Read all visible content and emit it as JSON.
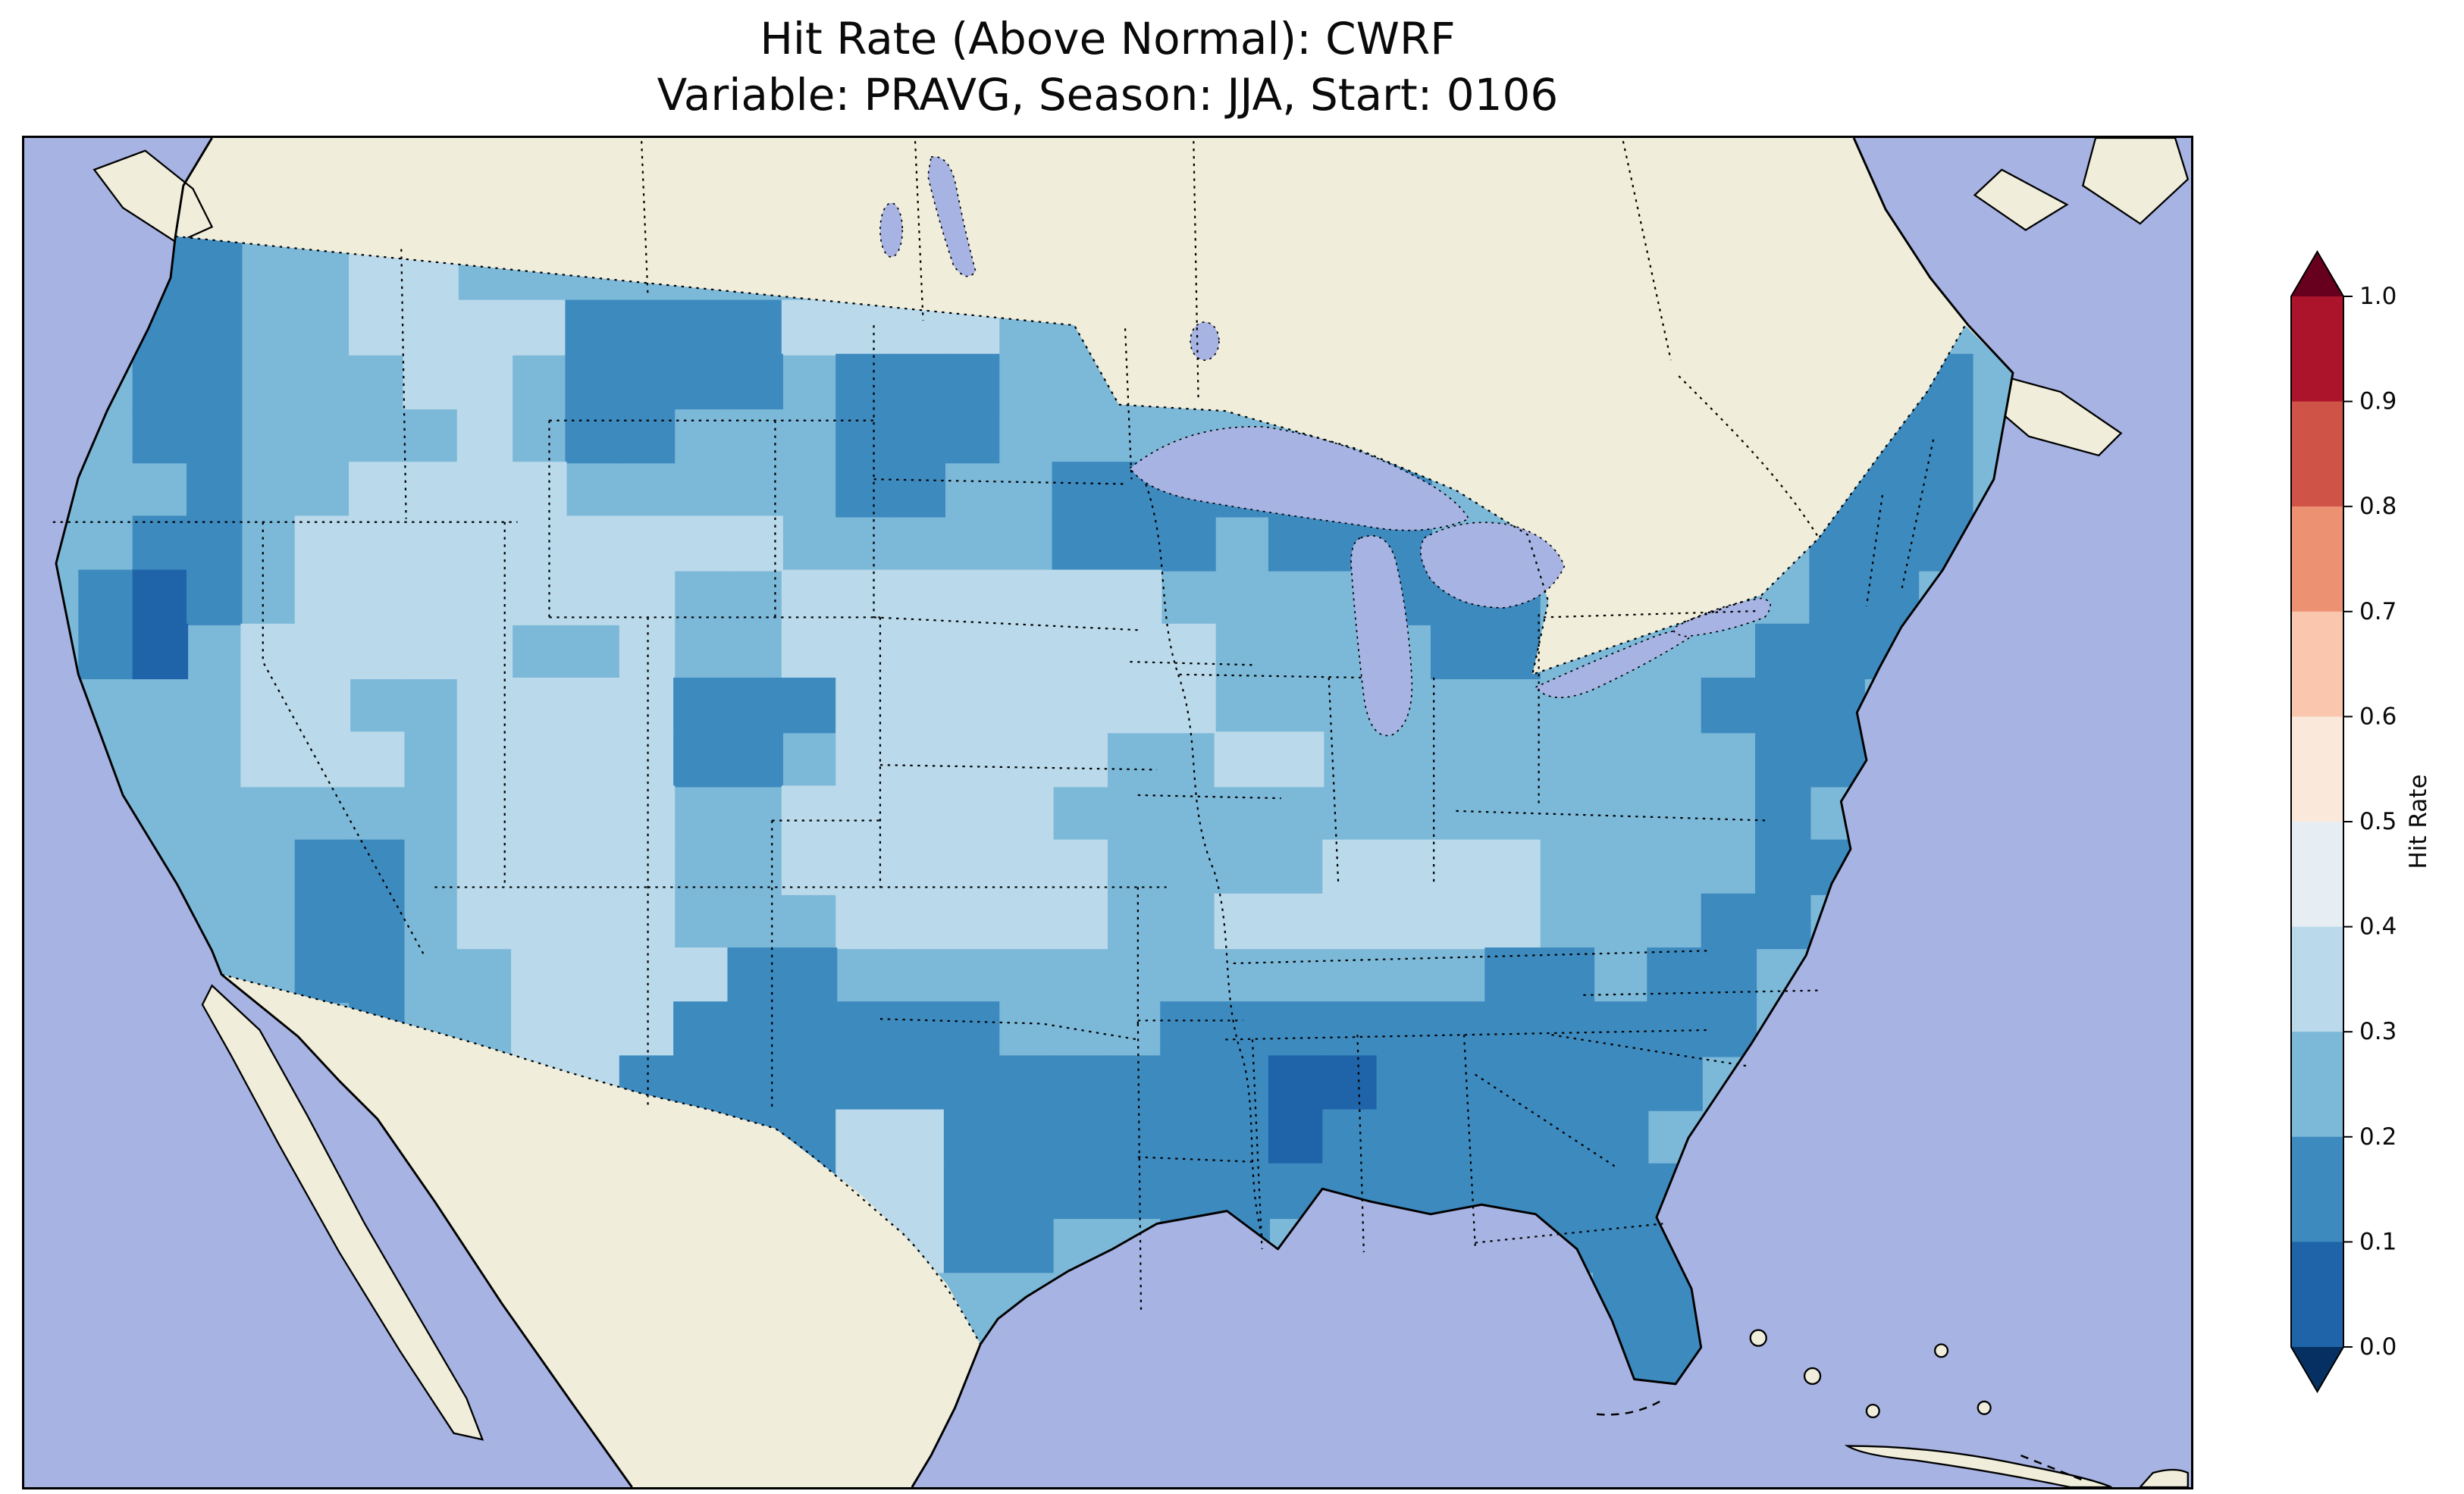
{
  "figure": {
    "title_line1": "Hit Rate (Above Normal): CWRF",
    "title_line2": "Variable: PRAVG, Season: JJA, Start: 0106"
  },
  "chart_data": {
    "type": "heatmap",
    "subtype": "gridded-geographic-map",
    "title": "Hit Rate (Above Normal): CWRF",
    "subtitle": "Variable: PRAVG, Season: JJA, Start: 0106",
    "metric": "Hit Rate",
    "event_category": "Above Normal",
    "model": "CWRF",
    "variable": "PRAVG",
    "season": "JJA",
    "start": "0106",
    "region": "Contiguous United States",
    "notes": "Gridded hit-rate values over CONUS fall mostly between 0.1 and 0.4; no warm (red) values above 0.5 appear on the map.",
    "colorbar": {
      "label": "Hit Rate",
      "orientation": "vertical",
      "position": "right",
      "extend": "both",
      "ticks": [
        1.0,
        0.9,
        0.8,
        0.7,
        0.6,
        0.5,
        0.4,
        0.3,
        0.2,
        0.1,
        0.0
      ],
      "tick_labels": [
        "1.0",
        "0.9",
        "0.8",
        "0.7",
        "0.6",
        "0.5",
        "0.4",
        "0.3",
        "0.2",
        "0.1",
        "0.0"
      ],
      "band_colors_top_to_bottom": [
        "#ab142a",
        "#cf5347",
        "#ec9273",
        "#fac7ae",
        "#fae9db",
        "#e6eef3",
        "#bad9ea",
        "#7cb8d8",
        "#3d8abf",
        "#1f64a9"
      ],
      "arrow_top_color": "#67001f",
      "arrow_bottom_color": "#053061",
      "colormap": "RdBu_r"
    },
    "value_classes": {
      "1": {
        "range": [
          0.3,
          0.4
        ],
        "color": "#bad9ea"
      },
      "2": {
        "range": [
          0.2,
          0.3
        ],
        "color": "#7cb8d8"
      },
      "3": {
        "range": [
          0.1,
          0.2
        ],
        "color": "#3d8abf"
      },
      "4": {
        "range": [
          0.0,
          0.1
        ],
        "color": "#1f64a9"
      }
    },
    "base_class": "2",
    "map_colors": {
      "ocean": "#a7b3e2",
      "land": "#f0eedb",
      "lakes": "#a7b3e2"
    },
    "grid": {
      "cols": 40,
      "rows": 26,
      "cell_size": 34,
      "rows_data": [
        [
          "..........",
          "..........",
          "..........",
          ".........."
        ],
        [
          "..3322....",
          "..........",
          "..........",
          ".........."
        ],
        [
          "..332211..",
          "..........",
          "..........",
          ".........."
        ],
        [
          "..33221111",
          "3333111122",
          "..........",
          ".........."
        ],
        [
          "..33222112",
          "3333233322",
          "2.........",
          "....33...."
        ],
        [
          "..33222212",
          "3322233322",
          "22........",
          "...333...."
        ],
        [
          "..23221111",
          "2222233223",
          "333333....",
          ".22333...."
        ],
        [
          "..33211111",
          "1111222223",
          "332333....",
          ".32333...."
        ],
        [
          ".343211111",
          "1122111111",
          "1222233322",
          "222332...."
        ],
        [
          ".342111112",
          "2122111111",
          "1122223322",
          "223332...."
        ],
        [
          ".222112211",
          "1133311111",
          "1122222222",
          "2333......"
        ],
        [
          ".222111211",
          "1133211111",
          "2211222222",
          "2233......"
        ],
        [
          "..22222211",
          "1122111112",
          "2222222222",
          "223......."
        ],
        [
          "..22233211",
          "1122111111",
          "2222111122",
          "2233......"
        ],
        [
          "...2233211",
          "1122211111",
          "2211111122",
          "233......."
        ],
        [
          "...2233221",
          "1113322222",
          "2222222332",
          "33........"
        ],
        [
          "....223221",
          "1133333322",
          "2333333333",
          "33........"
        ],
        [
          ".....22211",
          "1333333333",
          "3334433333",
          "3........."
        ],
        [
          "......2111",
          "2333311333",
          "3334333333",
          ".........."
        ],
        [
          "..........",
          "2223311333",
          "3333333333",
          "3........."
        ],
        [
          "..........",
          "...331133.",
          ".33.....33",
          "33........"
        ],
        [
          "..........",
          ".....322..",
          ".........3",
          "33........"
        ],
        [
          "..........",
          ".....22...",
          ".........3",
          "3........."
        ],
        [
          "..........",
          "..........",
          ".........3",
          "3........."
        ],
        [
          "..........",
          "..........",
          "..........",
          ".........."
        ],
        [
          "..........",
          "..........",
          "..........",
          ".........."
        ]
      ]
    }
  }
}
